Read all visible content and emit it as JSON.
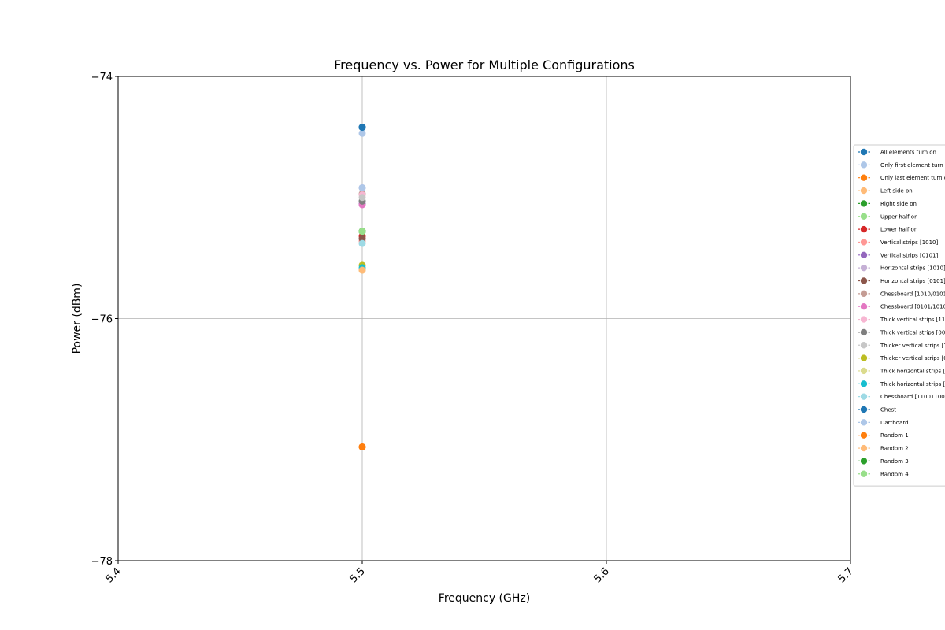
{
  "chart_data": {
    "type": "scatter",
    "title": "Frequency vs. Power for Multiple Configurations",
    "xlabel": "Frequency (GHz)",
    "ylabel": "Power (dBm)",
    "xlim": [
      5.4,
      5.7
    ],
    "ylim": [
      -78,
      -74
    ],
    "xticks": [
      5.4,
      5.5,
      5.6,
      5.7
    ],
    "xtick_labels": [
      "5.4",
      "5.5",
      "5.6",
      "5.7"
    ],
    "yticks": [
      -78,
      -76,
      -74
    ],
    "ytick_labels": [
      "−78",
      "−76",
      "−74"
    ],
    "grid": true,
    "legend_position": "right",
    "series": [
      {
        "name": "All elements turn on",
        "color": "#1f77b4",
        "x": [
          5.5
        ],
        "y": [
          -74.42
        ]
      },
      {
        "name": "Only first element turn",
        "color": "#aec7e8",
        "x": [
          5.5
        ],
        "y": [
          -74.47
        ]
      },
      {
        "name": "Only last element turn o",
        "color": "#ff7f0e",
        "x": [
          5.5
        ],
        "y": [
          -77.06
        ]
      },
      {
        "name": "Left side on",
        "color": "#ffbb78",
        "x": [
          5.5
        ],
        "y": [
          -75.6
        ]
      },
      {
        "name": "Right side on",
        "color": "#2ca02c",
        "x": [
          5.5
        ],
        "y": [
          -75.28
        ]
      },
      {
        "name": "Upper half on",
        "color": "#98df8a",
        "x": [
          5.5
        ],
        "y": [
          -75.28
        ]
      },
      {
        "name": "Lower half on",
        "color": "#d62728",
        "x": [
          5.5
        ],
        "y": [
          -75.32
        ]
      },
      {
        "name": "Vertical strips [1010]",
        "color": "#ff9896",
        "x": [
          5.5
        ],
        "y": [
          -75.36
        ]
      },
      {
        "name": "Vertical strips [0101]",
        "color": "#9467bd",
        "x": [
          5.5
        ],
        "y": [
          -75.05
        ]
      },
      {
        "name": "Horizontal strips [1010]",
        "color": "#c5b0d5",
        "x": [
          5.5
        ],
        "y": [
          -74.92
        ]
      },
      {
        "name": "Horizontal strips [0101]",
        "color": "#8c564b",
        "x": [
          5.5
        ],
        "y": [
          -75.34
        ]
      },
      {
        "name": "Chessboard [1010/0101]",
        "color": "#c49c94",
        "x": [
          5.5
        ],
        "y": [
          -74.97
        ]
      },
      {
        "name": "Chessboard [0101/1010]",
        "color": "#e377c2",
        "x": [
          5.5
        ],
        "y": [
          -75.06
        ]
      },
      {
        "name": "Thick vertical strips [11",
        "color": "#f7b6d2",
        "x": [
          5.5
        ],
        "y": [
          -74.98
        ]
      },
      {
        "name": "Thick vertical strips [00",
        "color": "#7f7f7f",
        "x": [
          5.5
        ],
        "y": [
          -75.03
        ]
      },
      {
        "name": "Thicker vertical strips [1",
        "color": "#c7c7c7",
        "x": [
          5.5
        ],
        "y": [
          -75.0
        ]
      },
      {
        "name": "Thicker vertical strips [0",
        "color": "#bcbd22",
        "x": [
          5.5
        ],
        "y": [
          -75.56
        ]
      },
      {
        "name": "Thick horizontal strips [",
        "color": "#dbdb8d",
        "x": [
          5.5
        ],
        "y": [
          -75.6
        ]
      },
      {
        "name": "Thick horizontal strips [",
        "color": "#17becf",
        "x": [
          5.5
        ],
        "y": [
          -75.58
        ]
      },
      {
        "name": "Chessboard [11001100",
        "color": "#9edae5",
        "x": [
          5.5
        ],
        "y": [
          -75.38
        ]
      },
      {
        "name": "Chest",
        "color": "#1f77b4",
        "x": [
          5.5
        ],
        "y": [
          -74.42
        ]
      },
      {
        "name": "Dartboard",
        "color": "#aec7e8",
        "x": [
          5.5
        ],
        "y": [
          -74.92
        ]
      },
      {
        "name": "Random 1",
        "color": "#ff7f0e",
        "x": [
          5.5
        ],
        "y": [
          -77.06
        ]
      },
      {
        "name": "Random 2",
        "color": "#ffbb78",
        "x": [
          5.5
        ],
        "y": [
          -75.6
        ]
      },
      {
        "name": "Random 3",
        "color": "#2ca02c",
        "x": [
          5.5
        ],
        "y": [
          -75.28
        ]
      },
      {
        "name": "Random 4",
        "color": "#98df8a",
        "x": [
          5.5
        ],
        "y": [
          -75.28
        ]
      }
    ]
  }
}
